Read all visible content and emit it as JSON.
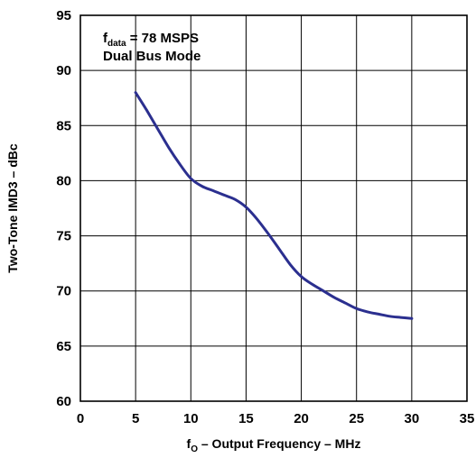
{
  "chart_data": {
    "type": "line",
    "xlabel_main": "f",
    "xlabel_sub": "O",
    "xlabel_rest": " – Output Frequency – MHz",
    "ylabel": "Two-Tone IMD3 – dBc",
    "xlim": [
      0,
      35
    ],
    "ylim": [
      60,
      95
    ],
    "xticks": [
      0,
      5,
      10,
      15,
      20,
      25,
      30,
      35
    ],
    "yticks": [
      60,
      65,
      70,
      75,
      80,
      85,
      90,
      95
    ],
    "grid": true,
    "annotation": {
      "line1_main": "f",
      "line1_sub": "data",
      "line1_rest": " = 78 MSPS",
      "line2": "Dual Bus Mode"
    },
    "line_color": "#2b2f8f",
    "series": [
      {
        "x": [
          5,
          6,
          7,
          8,
          9,
          10,
          11,
          12,
          13,
          14,
          15,
          16,
          17,
          18,
          19,
          20,
          21,
          22,
          23,
          24,
          25,
          26,
          27,
          28,
          29,
          30
        ],
        "y": [
          88.0,
          86.4,
          84.7,
          83.0,
          81.5,
          80.2,
          79.5,
          79.1,
          78.7,
          78.3,
          77.6,
          76.5,
          75.2,
          73.8,
          72.4,
          71.3,
          70.6,
          70.0,
          69.4,
          68.9,
          68.4,
          68.1,
          67.9,
          67.7,
          67.6,
          67.5
        ]
      }
    ]
  }
}
